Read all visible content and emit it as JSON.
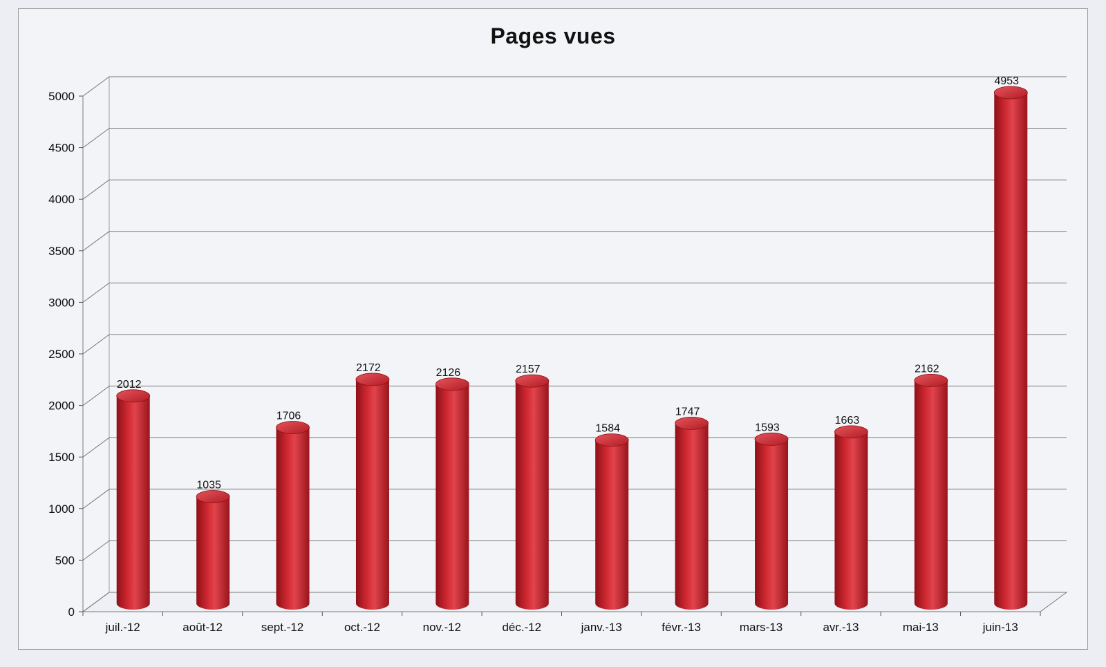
{
  "chart_data": {
    "type": "bar",
    "title": "Pages vues",
    "xlabel": "",
    "ylabel": "",
    "categories": [
      "juil.-12",
      "août-12",
      "sept.-12",
      "oct.-12",
      "nov.-12",
      "déc.-12",
      "janv.-13",
      "févr.-13",
      "mars-13",
      "avr.-13",
      "mai-13",
      "juin-13"
    ],
    "values": [
      2012,
      1035,
      1706,
      2172,
      2126,
      2157,
      1584,
      1747,
      1593,
      1663,
      2162,
      4953
    ],
    "ylim": [
      0,
      5000
    ],
    "yticks": [
      "0",
      "500",
      "1000",
      "1500",
      "2000",
      "2500",
      "3000",
      "3500",
      "4000",
      "4500",
      "5000"
    ],
    "grid": true,
    "legend": "none",
    "bar_color": "#c8202a",
    "style": "3d-cylinder"
  }
}
